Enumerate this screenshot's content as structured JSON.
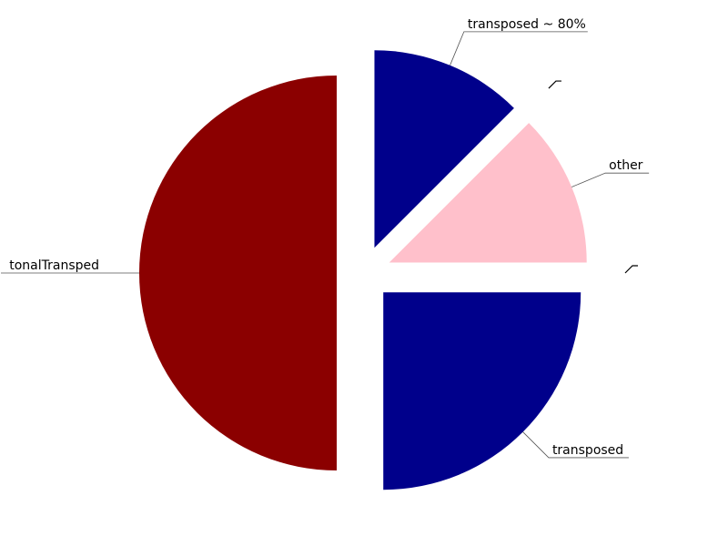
{
  "chart_data": {
    "type": "pie",
    "title": "",
    "slices": [
      {
        "label": "transposed ~ 80%",
        "value": 12.5,
        "color": "#00008b"
      },
      {
        "label": "",
        "value": 0,
        "color": "#000000"
      },
      {
        "label": "other",
        "value": 12.5,
        "color": "#ffc0cb"
      },
      {
        "label": "",
        "value": 0,
        "color": "#000000"
      },
      {
        "label": "transposed",
        "value": 25,
        "color": "#00008b"
      },
      {
        "label": "tonalTransped",
        "value": 50,
        "color": "#8b0000"
      }
    ],
    "start_angle_deg": 90,
    "direction": "clockwise",
    "exploded": true,
    "legend": "none"
  }
}
